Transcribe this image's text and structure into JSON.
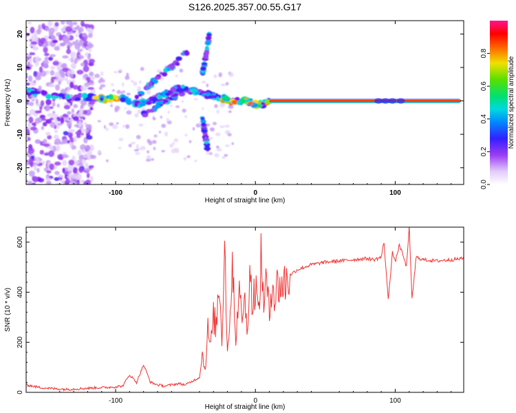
{
  "title": "S126.2025.357.00.55.G17",
  "chart_data": [
    {
      "type": "heatmap",
      "title": "S126.2025.357.00.55.G17",
      "xlabel": "Height of straight line (km)",
      "ylabel": "Frequency (Hz)",
      "xlim": [
        -164,
        149
      ],
      "ylim": [
        -25,
        24
      ],
      "xticks": [
        -100,
        0,
        100
      ],
      "yticks": [
        -20,
        -10,
        0,
        10,
        20
      ],
      "colorbar": {
        "label": "Normalized spectral amplitude",
        "range": [
          0,
          1
        ],
        "ticks": [
          "0.0",
          "0.2",
          "0.4",
          "0.6",
          "0.8"
        ],
        "colors": [
          "#ffffff",
          "#d6b8f8",
          "#7a16f0",
          "#2a2aff",
          "#00c8ff",
          "#00e070",
          "#40e000",
          "#f0e000",
          "#ff6a00",
          "#ff0000",
          "#ff1090"
        ]
      },
      "ridge": {
        "x": [
          -164,
          -150,
          -135,
          -120,
          -105,
          -95,
          -85,
          -75,
          -65,
          -55,
          -45,
          -35,
          -25,
          -18,
          -10,
          -5,
          0,
          5,
          10,
          149
        ],
        "y": [
          3,
          2,
          1,
          1,
          0.5,
          1,
          -1,
          0,
          2,
          4,
          3,
          2,
          1,
          0,
          0,
          0,
          -1,
          -1,
          0,
          0
        ]
      },
      "branches": [
        {
          "x": [
            -85,
            -78,
            -70,
            -62,
            -55,
            -48
          ],
          "y": [
            1,
            4,
            7,
            9,
            12,
            15
          ]
        },
        {
          "x": [
            -80,
            -72,
            -65,
            -55,
            -48
          ],
          "y": [
            -4,
            -2,
            0,
            2,
            4
          ]
        },
        {
          "x": [
            -38,
            -36,
            -34
          ],
          "y": [
            -5,
            -10,
            -15
          ]
        },
        {
          "x": [
            -38,
            -35,
            -33
          ],
          "y": [
            8,
            14,
            20
          ]
        }
      ]
    },
    {
      "type": "line",
      "xlabel": "Height of straight line (km)",
      "ylabel": "SNR (10 * v/v)",
      "xlim": [
        -164,
        149
      ],
      "ylim": [
        0,
        660
      ],
      "xticks": [
        -100,
        0,
        100
      ],
      "yticks": [
        0,
        200,
        400,
        600
      ],
      "series": [
        {
          "name": "SNR",
          "color": "#f03232",
          "x": [
            -164,
            -155,
            -145,
            -135,
            -125,
            -115,
            -105,
            -95,
            -90,
            -85,
            -80,
            -75,
            -70,
            -65,
            -60,
            -55,
            -50,
            -45,
            -40,
            -38,
            -36,
            -34,
            -32,
            -30,
            -28,
            -26,
            -24,
            -22,
            -20,
            -18,
            -16,
            -14,
            -12,
            -10,
            -8,
            -6,
            -4,
            -2,
            0,
            2,
            4,
            6,
            8,
            10,
            12,
            14,
            16,
            18,
            20,
            25,
            30,
            40,
            50,
            60,
            70,
            80,
            85,
            90,
            92,
            95,
            98,
            100,
            103,
            106,
            108,
            110,
            112,
            115,
            120,
            130,
            140,
            149
          ],
          "values": [
            30,
            20,
            15,
            12,
            15,
            18,
            20,
            25,
            70,
            40,
            110,
            40,
            30,
            25,
            30,
            35,
            30,
            45,
            60,
            150,
            90,
            250,
            180,
            300,
            260,
            450,
            220,
            610,
            150,
            350,
            500,
            200,
            420,
            300,
            380,
            250,
            500,
            330,
            450,
            300,
            520,
            380,
            440,
            300,
            480,
            360,
            440,
            420,
            430,
            470,
            490,
            510,
            520,
            525,
            530,
            535,
            530,
            540,
            600,
            370,
            560,
            520,
            590,
            540,
            500,
            660,
            370,
            540,
            530,
            525,
            530,
            535
          ]
        }
      ]
    }
  ]
}
